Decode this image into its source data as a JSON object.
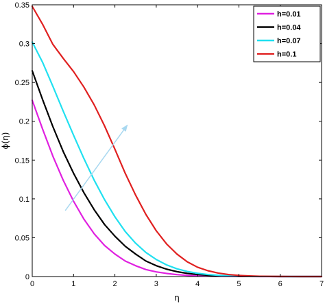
{
  "chart_data": {
    "type": "line",
    "xlabel": "η",
    "ylabel": "ϕ(η)",
    "xlim": [
      0,
      7
    ],
    "ylim": [
      0,
      0.35
    ],
    "xticks": [
      "0",
      "1",
      "2",
      "3",
      "4",
      "5",
      "6",
      "7"
    ],
    "yticks": [
      "0",
      "0.05",
      "0.1",
      "0.15",
      "0.2",
      "0.25",
      "0.3",
      "0.35"
    ],
    "grid": false,
    "legend_position": "top-right",
    "x": [
      0,
      0.25,
      0.5,
      0.75,
      1,
      1.25,
      1.5,
      1.75,
      2,
      2.25,
      2.5,
      2.75,
      3,
      3.25,
      3.5,
      3.75,
      4,
      4.25,
      4.5,
      4.75,
      5,
      5.25,
      5.5,
      5.75,
      6,
      6.25,
      6.5,
      6.75,
      7
    ],
    "series": [
      {
        "name": "h=0.01",
        "color": "#e020e0",
        "values": [
          0.227,
          0.19,
          0.155,
          0.124,
          0.097,
          0.074,
          0.055,
          0.04,
          0.029,
          0.02,
          0.014,
          0.009,
          0.006,
          0.004,
          0.0025,
          0.0015,
          0.0009,
          0.0005,
          0.0003,
          0.0002,
          0.0001,
          5e-05,
          3e-05,
          2e-05,
          1e-05,
          0,
          0,
          0,
          0
        ]
      },
      {
        "name": "h=0.04",
        "color": "#000000",
        "values": [
          0.265,
          0.228,
          0.193,
          0.161,
          0.133,
          0.108,
          0.086,
          0.067,
          0.052,
          0.039,
          0.029,
          0.02,
          0.014,
          0.0095,
          0.0063,
          0.0041,
          0.0026,
          0.0016,
          0.001,
          0.0006,
          0.00035,
          0.0002,
          0.0001,
          6e-05,
          3e-05,
          2e-05,
          1e-05,
          0,
          0
        ]
      },
      {
        "name": "h=0.07",
        "color": "#20e0f0",
        "values": [
          0.302,
          0.276,
          0.245,
          0.213,
          0.182,
          0.152,
          0.124,
          0.099,
          0.077,
          0.058,
          0.043,
          0.031,
          0.022,
          0.015,
          0.01,
          0.0066,
          0.0042,
          0.0026,
          0.0016,
          0.0009,
          0.0005,
          0.0003,
          0.00017,
          0.0001,
          5e-05,
          3e-05,
          1e-05,
          0,
          0
        ]
      },
      {
        "name": "h=0.1",
        "color": "#e02020",
        "values": [
          0.348,
          0.325,
          0.299,
          0.281,
          0.264,
          0.244,
          0.221,
          0.194,
          0.164,
          0.133,
          0.105,
          0.08,
          0.059,
          0.042,
          0.029,
          0.019,
          0.012,
          0.0075,
          0.0045,
          0.0026,
          0.0015,
          0.0008,
          0.0004,
          0.0002,
          0.0001,
          5e-05,
          2e-05,
          1e-05,
          0
        ]
      }
    ],
    "annotations": [
      {
        "type": "arrow",
        "color": "#a8d8f0",
        "from": [
          0.8,
          0.085
        ],
        "to": [
          2.3,
          0.195
        ]
      }
    ]
  }
}
